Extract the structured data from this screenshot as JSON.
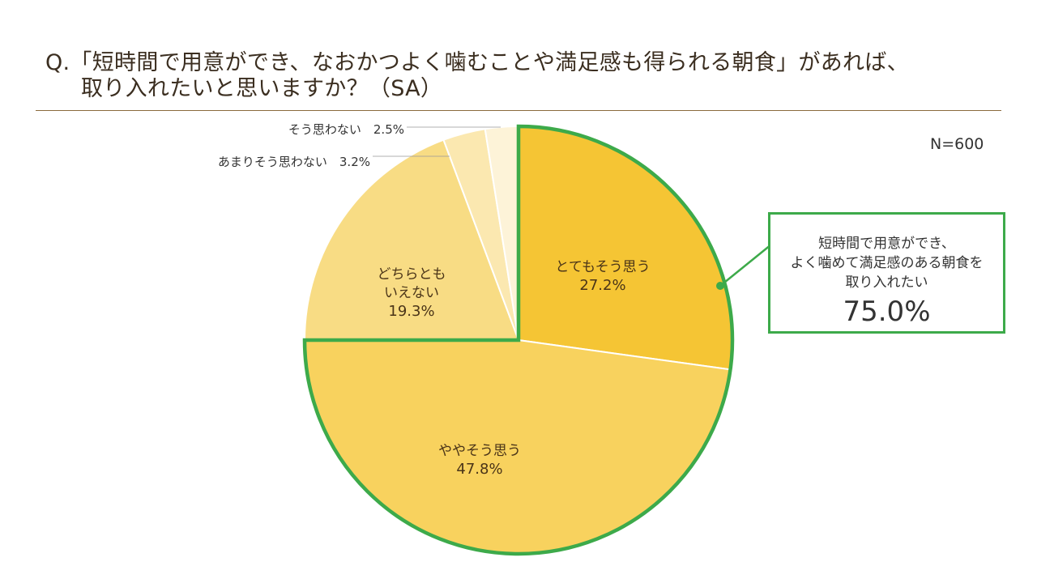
{
  "question": {
    "line1": "Q.「短時間で用意ができ、なおかつよく噛むことや満足感も得られる朝食」があれば、",
    "line2": "取り入れたいと思いますか？（SA）"
  },
  "sample_size": "N=600",
  "callout": {
    "line1": "短時間で用意ができ、",
    "line2": "よく噛めて満足感のある朝食を",
    "line3": "取り入れたい",
    "value": "75.0%"
  },
  "chart_data": {
    "type": "pie",
    "slices": [
      {
        "label": "とてもそう思う",
        "value": 27.2,
        "value_label": "27.2%",
        "color": "#f5c534",
        "highlight": true
      },
      {
        "label": "ややそう思う",
        "value": 47.8,
        "value_label": "47.8%",
        "color": "#f8d25e",
        "highlight": true
      },
      {
        "label": "どちらとも\nいえない",
        "value": 19.3,
        "value_label": "19.3%",
        "color": "#f8dc84"
      },
      {
        "label": "あまりそう思わない",
        "value": 3.2,
        "value_label": "3.2%",
        "color": "#fbe8b0"
      },
      {
        "label": "そう思わない",
        "value": 2.5,
        "value_label": "2.5%",
        "color": "#fdf3d8"
      }
    ],
    "highlight_color": "#3daa4a",
    "direction": "clockwise from top"
  }
}
